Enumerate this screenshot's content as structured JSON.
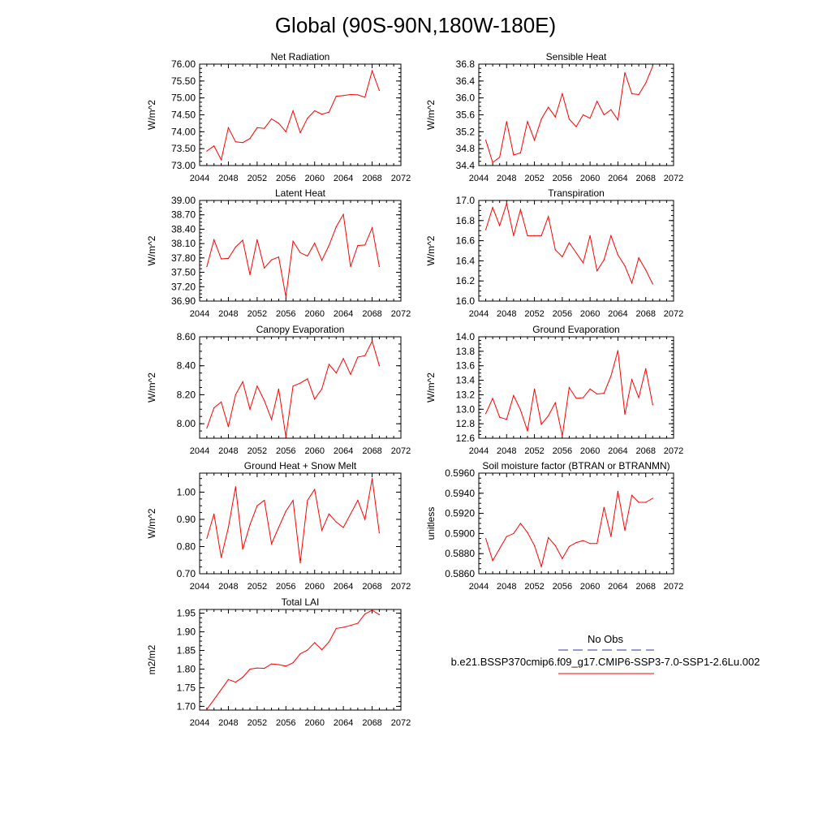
{
  "figure": {
    "title": "Global (90S-90N,180W-180E)"
  },
  "legend": {
    "entries": [
      {
        "label": "No Obs",
        "color": "#3333aa",
        "style": "dashed"
      },
      {
        "label": "b.e21.BSSP370cmip6.f09_g17.CMIP6-SSP3-7.0-SSP1-2.6Lu.002",
        "color": "#ff0000",
        "style": "solid"
      }
    ]
  },
  "chart_data": [
    {
      "type": "line",
      "title": "Net Radiation",
      "xlabel": "",
      "ylabel": "W/m^2",
      "xlim": [
        2044,
        2072
      ],
      "ylim": [
        73.0,
        76.0
      ],
      "x_ticks": [
        "2044",
        "2048",
        "2052",
        "2056",
        "2060",
        "2064",
        "2068",
        "2072"
      ],
      "y_ticks": [
        "73.00",
        "73.50",
        "74.00",
        "74.50",
        "75.00",
        "75.50",
        "76.00"
      ],
      "series": [
        {
          "color": "#ff0000",
          "x": [
            2045,
            2046,
            2047,
            2048,
            2049,
            2050,
            2051,
            2052,
            2053,
            2054,
            2055,
            2056,
            2057,
            2058,
            2059,
            2060,
            2061,
            2062,
            2063,
            2064,
            2065,
            2066,
            2067,
            2068,
            2069
          ],
          "y": [
            73.43,
            73.58,
            73.17,
            74.12,
            73.7,
            73.68,
            73.8,
            74.12,
            74.1,
            74.38,
            74.25,
            74.0,
            74.62,
            73.97,
            74.4,
            74.62,
            74.52,
            74.58,
            75.05,
            75.07,
            75.1,
            75.09,
            75.02,
            75.8,
            75.22
          ]
        }
      ]
    },
    {
      "type": "line",
      "title": "Sensible Heat",
      "xlabel": "",
      "ylabel": "W/m^2",
      "xlim": [
        2044,
        2072
      ],
      "ylim": [
        34.4,
        36.8
      ],
      "x_ticks": [
        "2044",
        "2048",
        "2052",
        "2056",
        "2060",
        "2064",
        "2068",
        "2072"
      ],
      "y_ticks": [
        "34.4",
        "34.8",
        "35.2",
        "35.6",
        "36.0",
        "36.4",
        "36.8"
      ],
      "series": [
        {
          "color": "#ff0000",
          "x": [
            2045,
            2046,
            2047,
            2048,
            2049,
            2050,
            2051,
            2052,
            2053,
            2054,
            2055,
            2056,
            2057,
            2058,
            2059,
            2060,
            2061,
            2062,
            2063,
            2064,
            2065,
            2066,
            2067,
            2068,
            2069
          ],
          "y": [
            35.0,
            34.47,
            34.6,
            35.44,
            34.65,
            34.7,
            35.44,
            35.0,
            35.5,
            35.78,
            35.55,
            36.1,
            35.5,
            35.32,
            35.6,
            35.52,
            35.92,
            35.6,
            35.72,
            35.48,
            36.6,
            36.1,
            36.08,
            36.35,
            36.75
          ]
        }
      ]
    },
    {
      "type": "line",
      "title": "Latent Heat",
      "xlabel": "",
      "ylabel": "W/m^2",
      "xlim": [
        2044,
        2072
      ],
      "ylim": [
        36.9,
        39.0
      ],
      "x_ticks": [
        "2044",
        "2048",
        "2052",
        "2056",
        "2060",
        "2064",
        "2068",
        "2072"
      ],
      "y_ticks": [
        "36.90",
        "37.20",
        "37.50",
        "37.80",
        "38.10",
        "38.40",
        "38.70",
        "39.00"
      ],
      "series": [
        {
          "color": "#ff0000",
          "x": [
            2045,
            2046,
            2047,
            2048,
            2049,
            2050,
            2051,
            2052,
            2053,
            2054,
            2055,
            2056,
            2057,
            2058,
            2059,
            2060,
            2061,
            2062,
            2063,
            2064,
            2065,
            2066,
            2067,
            2068,
            2069
          ],
          "y": [
            37.62,
            38.18,
            37.78,
            37.79,
            38.03,
            38.17,
            37.45,
            38.18,
            37.59,
            37.76,
            37.82,
            36.99,
            38.15,
            37.91,
            37.84,
            38.11,
            37.75,
            38.06,
            38.45,
            38.71,
            37.62,
            38.06,
            38.07,
            38.43,
            37.62
          ]
        }
      ]
    },
    {
      "type": "line",
      "title": "Transpiration",
      "xlabel": "",
      "ylabel": "W/m^2",
      "xlim": [
        2044,
        2072
      ],
      "ylim": [
        16.0,
        17.0
      ],
      "x_ticks": [
        "2044",
        "2048",
        "2052",
        "2056",
        "2060",
        "2064",
        "2068",
        "2072"
      ],
      "y_ticks": [
        "16.0",
        "16.2",
        "16.4",
        "16.6",
        "16.8",
        "17.0"
      ],
      "series": [
        {
          "color": "#ff0000",
          "x": [
            2045,
            2046,
            2047,
            2048,
            2049,
            2050,
            2051,
            2052,
            2053,
            2054,
            2055,
            2056,
            2057,
            2058,
            2059,
            2060,
            2061,
            2062,
            2063,
            2064,
            2065,
            2066,
            2067,
            2068,
            2069
          ],
          "y": [
            16.71,
            16.93,
            16.75,
            16.97,
            16.65,
            16.91,
            16.65,
            16.65,
            16.65,
            16.84,
            16.51,
            16.44,
            16.58,
            16.48,
            16.38,
            16.65,
            16.3,
            16.41,
            16.65,
            16.46,
            16.35,
            16.18,
            16.43,
            16.31,
            16.17
          ]
        }
      ]
    },
    {
      "type": "line",
      "title": "Canopy Evaporation",
      "xlabel": "",
      "ylabel": "W/m^2",
      "xlim": [
        2044,
        2072
      ],
      "ylim": [
        7.9,
        8.6
      ],
      "x_ticks": [
        "2044",
        "2048",
        "2052",
        "2056",
        "2060",
        "2064",
        "2068",
        "2072"
      ],
      "y_ticks": [
        "8.00",
        "8.20",
        "8.40",
        "8.60"
      ],
      "series": [
        {
          "color": "#ff0000",
          "x": [
            2045,
            2046,
            2047,
            2048,
            2049,
            2050,
            2051,
            2052,
            2053,
            2054,
            2055,
            2056,
            2057,
            2058,
            2059,
            2060,
            2061,
            2062,
            2063,
            2064,
            2065,
            2066,
            2067,
            2068,
            2069
          ],
          "y": [
            7.97,
            8.11,
            8.15,
            7.98,
            8.2,
            8.29,
            8.1,
            8.26,
            8.16,
            8.03,
            8.24,
            7.91,
            8.26,
            8.28,
            8.31,
            8.17,
            8.24,
            8.41,
            8.35,
            8.45,
            8.34,
            8.46,
            8.47,
            8.57,
            8.4
          ]
        }
      ]
    },
    {
      "type": "line",
      "title": "Ground Evaporation",
      "xlabel": "",
      "ylabel": "W/m^2",
      "xlim": [
        2044,
        2072
      ],
      "ylim": [
        12.6,
        14.0
      ],
      "x_ticks": [
        "2044",
        "2048",
        "2052",
        "2056",
        "2060",
        "2064",
        "2068",
        "2072"
      ],
      "y_ticks": [
        "12.6",
        "12.8",
        "13.0",
        "13.2",
        "13.4",
        "13.6",
        "13.8",
        "14.0"
      ],
      "series": [
        {
          "color": "#ff0000",
          "x": [
            2045,
            2046,
            2047,
            2048,
            2049,
            2050,
            2051,
            2052,
            2053,
            2054,
            2055,
            2056,
            2057,
            2058,
            2059,
            2060,
            2061,
            2062,
            2063,
            2064,
            2065,
            2066,
            2067,
            2068,
            2069
          ],
          "y": [
            12.94,
            13.15,
            12.89,
            12.86,
            13.19,
            12.99,
            12.7,
            13.28,
            12.79,
            12.91,
            13.09,
            12.63,
            13.3,
            13.15,
            13.16,
            13.28,
            13.21,
            13.22,
            13.46,
            13.81,
            12.93,
            13.41,
            13.16,
            13.56,
            13.06
          ]
        }
      ]
    },
    {
      "type": "line",
      "title": "Ground Heat + Snow Melt",
      "xlabel": "",
      "ylabel": "W/m^2",
      "xlim": [
        2044,
        2072
      ],
      "ylim": [
        0.7,
        1.07
      ],
      "x_ticks": [
        "2044",
        "2048",
        "2052",
        "2056",
        "2060",
        "2064",
        "2068",
        "2072"
      ],
      "y_ticks": [
        "0.70",
        "0.80",
        "0.90",
        "1.00"
      ],
      "series": [
        {
          "color": "#ff0000",
          "x": [
            2045,
            2046,
            2047,
            2048,
            2049,
            2050,
            2051,
            2052,
            2053,
            2054,
            2055,
            2056,
            2057,
            2058,
            2059,
            2060,
            2061,
            2062,
            2063,
            2064,
            2065,
            2066,
            2067,
            2068,
            2069
          ],
          "y": [
            0.83,
            0.92,
            0.76,
            0.87,
            1.02,
            0.79,
            0.88,
            0.95,
            0.97,
            0.81,
            0.87,
            0.93,
            0.97,
            0.74,
            0.97,
            1.01,
            0.86,
            0.92,
            0.89,
            0.87,
            0.92,
            0.97,
            0.9,
            1.05,
            0.85
          ]
        }
      ]
    },
    {
      "type": "line",
      "title": "Soil moisture factor (BTRAN or BTRANMN)",
      "xlabel": "",
      "ylabel": "unitless",
      "xlim": [
        2044,
        2072
      ],
      "ylim": [
        0.586,
        0.596
      ],
      "x_ticks": [
        "2044",
        "2048",
        "2052",
        "2056",
        "2060",
        "2064",
        "2068",
        "2072"
      ],
      "y_ticks": [
        "0.5860",
        "0.5880",
        "0.5900",
        "0.5920",
        "0.5940",
        "0.5960"
      ],
      "series": [
        {
          "color": "#ff0000",
          "x": [
            2045,
            2046,
            2047,
            2048,
            2049,
            2050,
            2051,
            2052,
            2053,
            2054,
            2055,
            2056,
            2057,
            2058,
            2059,
            2060,
            2061,
            2062,
            2063,
            2064,
            2065,
            2066,
            2067,
            2068,
            2069
          ],
          "y": [
            0.5895,
            0.5873,
            0.5885,
            0.5897,
            0.59,
            0.591,
            0.5901,
            0.5888,
            0.5867,
            0.5896,
            0.5888,
            0.5875,
            0.5887,
            0.5891,
            0.5893,
            0.589,
            0.589,
            0.5926,
            0.5897,
            0.5942,
            0.5903,
            0.5938,
            0.5931,
            0.5931,
            0.5935
          ]
        }
      ]
    },
    {
      "type": "line",
      "title": "Total LAI",
      "xlabel": "",
      "ylabel": "m2/m2",
      "xlim": [
        2044,
        2072
      ],
      "ylim": [
        1.69,
        1.96
      ],
      "x_ticks": [
        "2044",
        "2048",
        "2052",
        "2056",
        "2060",
        "2064",
        "2068",
        "2072"
      ],
      "y_ticks": [
        "1.70",
        "1.75",
        "1.80",
        "1.85",
        "1.90",
        "1.95"
      ],
      "series": [
        {
          "color": "#ff0000",
          "x": [
            2045,
            2046,
            2047,
            2048,
            2049,
            2050,
            2051,
            2052,
            2053,
            2054,
            2055,
            2056,
            2057,
            2058,
            2059,
            2060,
            2061,
            2062,
            2063,
            2064,
            2065,
            2066,
            2067,
            2068,
            2069
          ],
          "y": [
            1.692,
            1.718,
            1.745,
            1.772,
            1.765,
            1.778,
            1.8,
            1.803,
            1.802,
            1.814,
            1.812,
            1.808,
            1.817,
            1.841,
            1.851,
            1.871,
            1.852,
            1.873,
            1.909,
            1.912,
            1.917,
            1.923,
            1.948,
            1.958,
            1.946
          ]
        }
      ]
    }
  ]
}
